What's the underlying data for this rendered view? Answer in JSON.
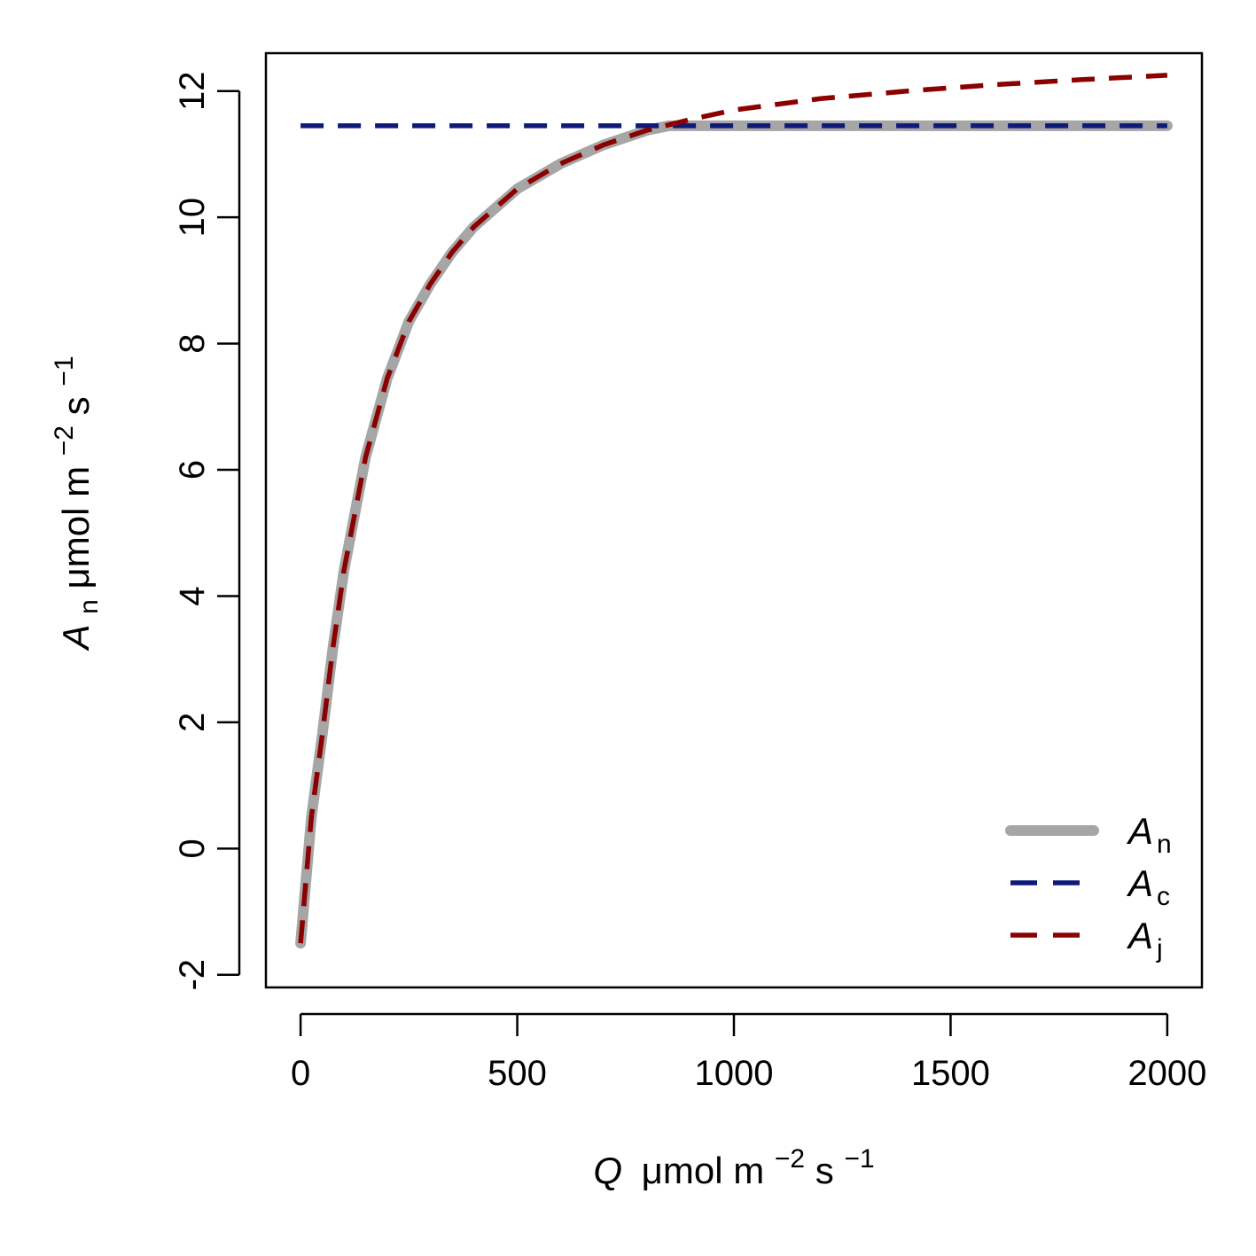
{
  "chart_data": {
    "type": "line",
    "title": "",
    "xlabel": {
      "symbol": "Q",
      "unit_prefix": "μmol m",
      "exp1": "−2",
      "unit_mid": " s",
      "exp2": "−1"
    },
    "ylabel": {
      "symbol": "A",
      "subscript": "n",
      "unit_prefix": " μmol m",
      "exp1": "−2",
      "unit_mid": " s",
      "exp2": "−1"
    },
    "xlim": [
      -80,
      2080
    ],
    "ylim": [
      -2.2,
      12.6
    ],
    "xticks": [
      0,
      500,
      1000,
      1500,
      2000
    ],
    "xtick_labels": [
      "0",
      "500",
      "1000",
      "1500",
      "2000"
    ],
    "yticks": [
      -2,
      0,
      2,
      4,
      6,
      8,
      10,
      12
    ],
    "ytick_labels": [
      "-2",
      "0",
      "2",
      "4",
      "6",
      "8",
      "10",
      "12"
    ],
    "grid": false,
    "legend_position": "bottom-right",
    "series": [
      {
        "name": "A",
        "subscript": "n",
        "color": "#a6a6a6",
        "style": "solid",
        "x": [
          0,
          25,
          50,
          75,
          100,
          150,
          200,
          250,
          300,
          350,
          400,
          500,
          600,
          700,
          800,
          850,
          900,
          1000,
          1200,
          1400,
          1600,
          1800,
          2000
        ],
        "values": [
          -1.5,
          0.5,
          1.8,
          3.2,
          4.4,
          6.2,
          7.45,
          8.35,
          8.95,
          9.45,
          9.85,
          10.45,
          10.85,
          11.15,
          11.38,
          11.45,
          11.45,
          11.45,
          11.45,
          11.45,
          11.45,
          11.45,
          11.45
        ]
      },
      {
        "name": "A",
        "subscript": "c",
        "color": "#0d1a7a",
        "style": "dashed",
        "x": [
          0,
          2000
        ],
        "values": [
          11.45,
          11.45
        ]
      },
      {
        "name": "A",
        "subscript": "j",
        "color": "#8b0000",
        "style": "dashed",
        "x": [
          0,
          25,
          50,
          75,
          100,
          150,
          200,
          250,
          300,
          350,
          400,
          500,
          600,
          700,
          800,
          900,
          1000,
          1200,
          1400,
          1600,
          1800,
          2000
        ],
        "values": [
          -1.5,
          0.5,
          1.8,
          3.2,
          4.4,
          6.2,
          7.45,
          8.35,
          8.95,
          9.45,
          9.85,
          10.45,
          10.85,
          11.15,
          11.38,
          11.55,
          11.7,
          11.88,
          12.0,
          12.1,
          12.18,
          12.25
        ]
      }
    ]
  }
}
